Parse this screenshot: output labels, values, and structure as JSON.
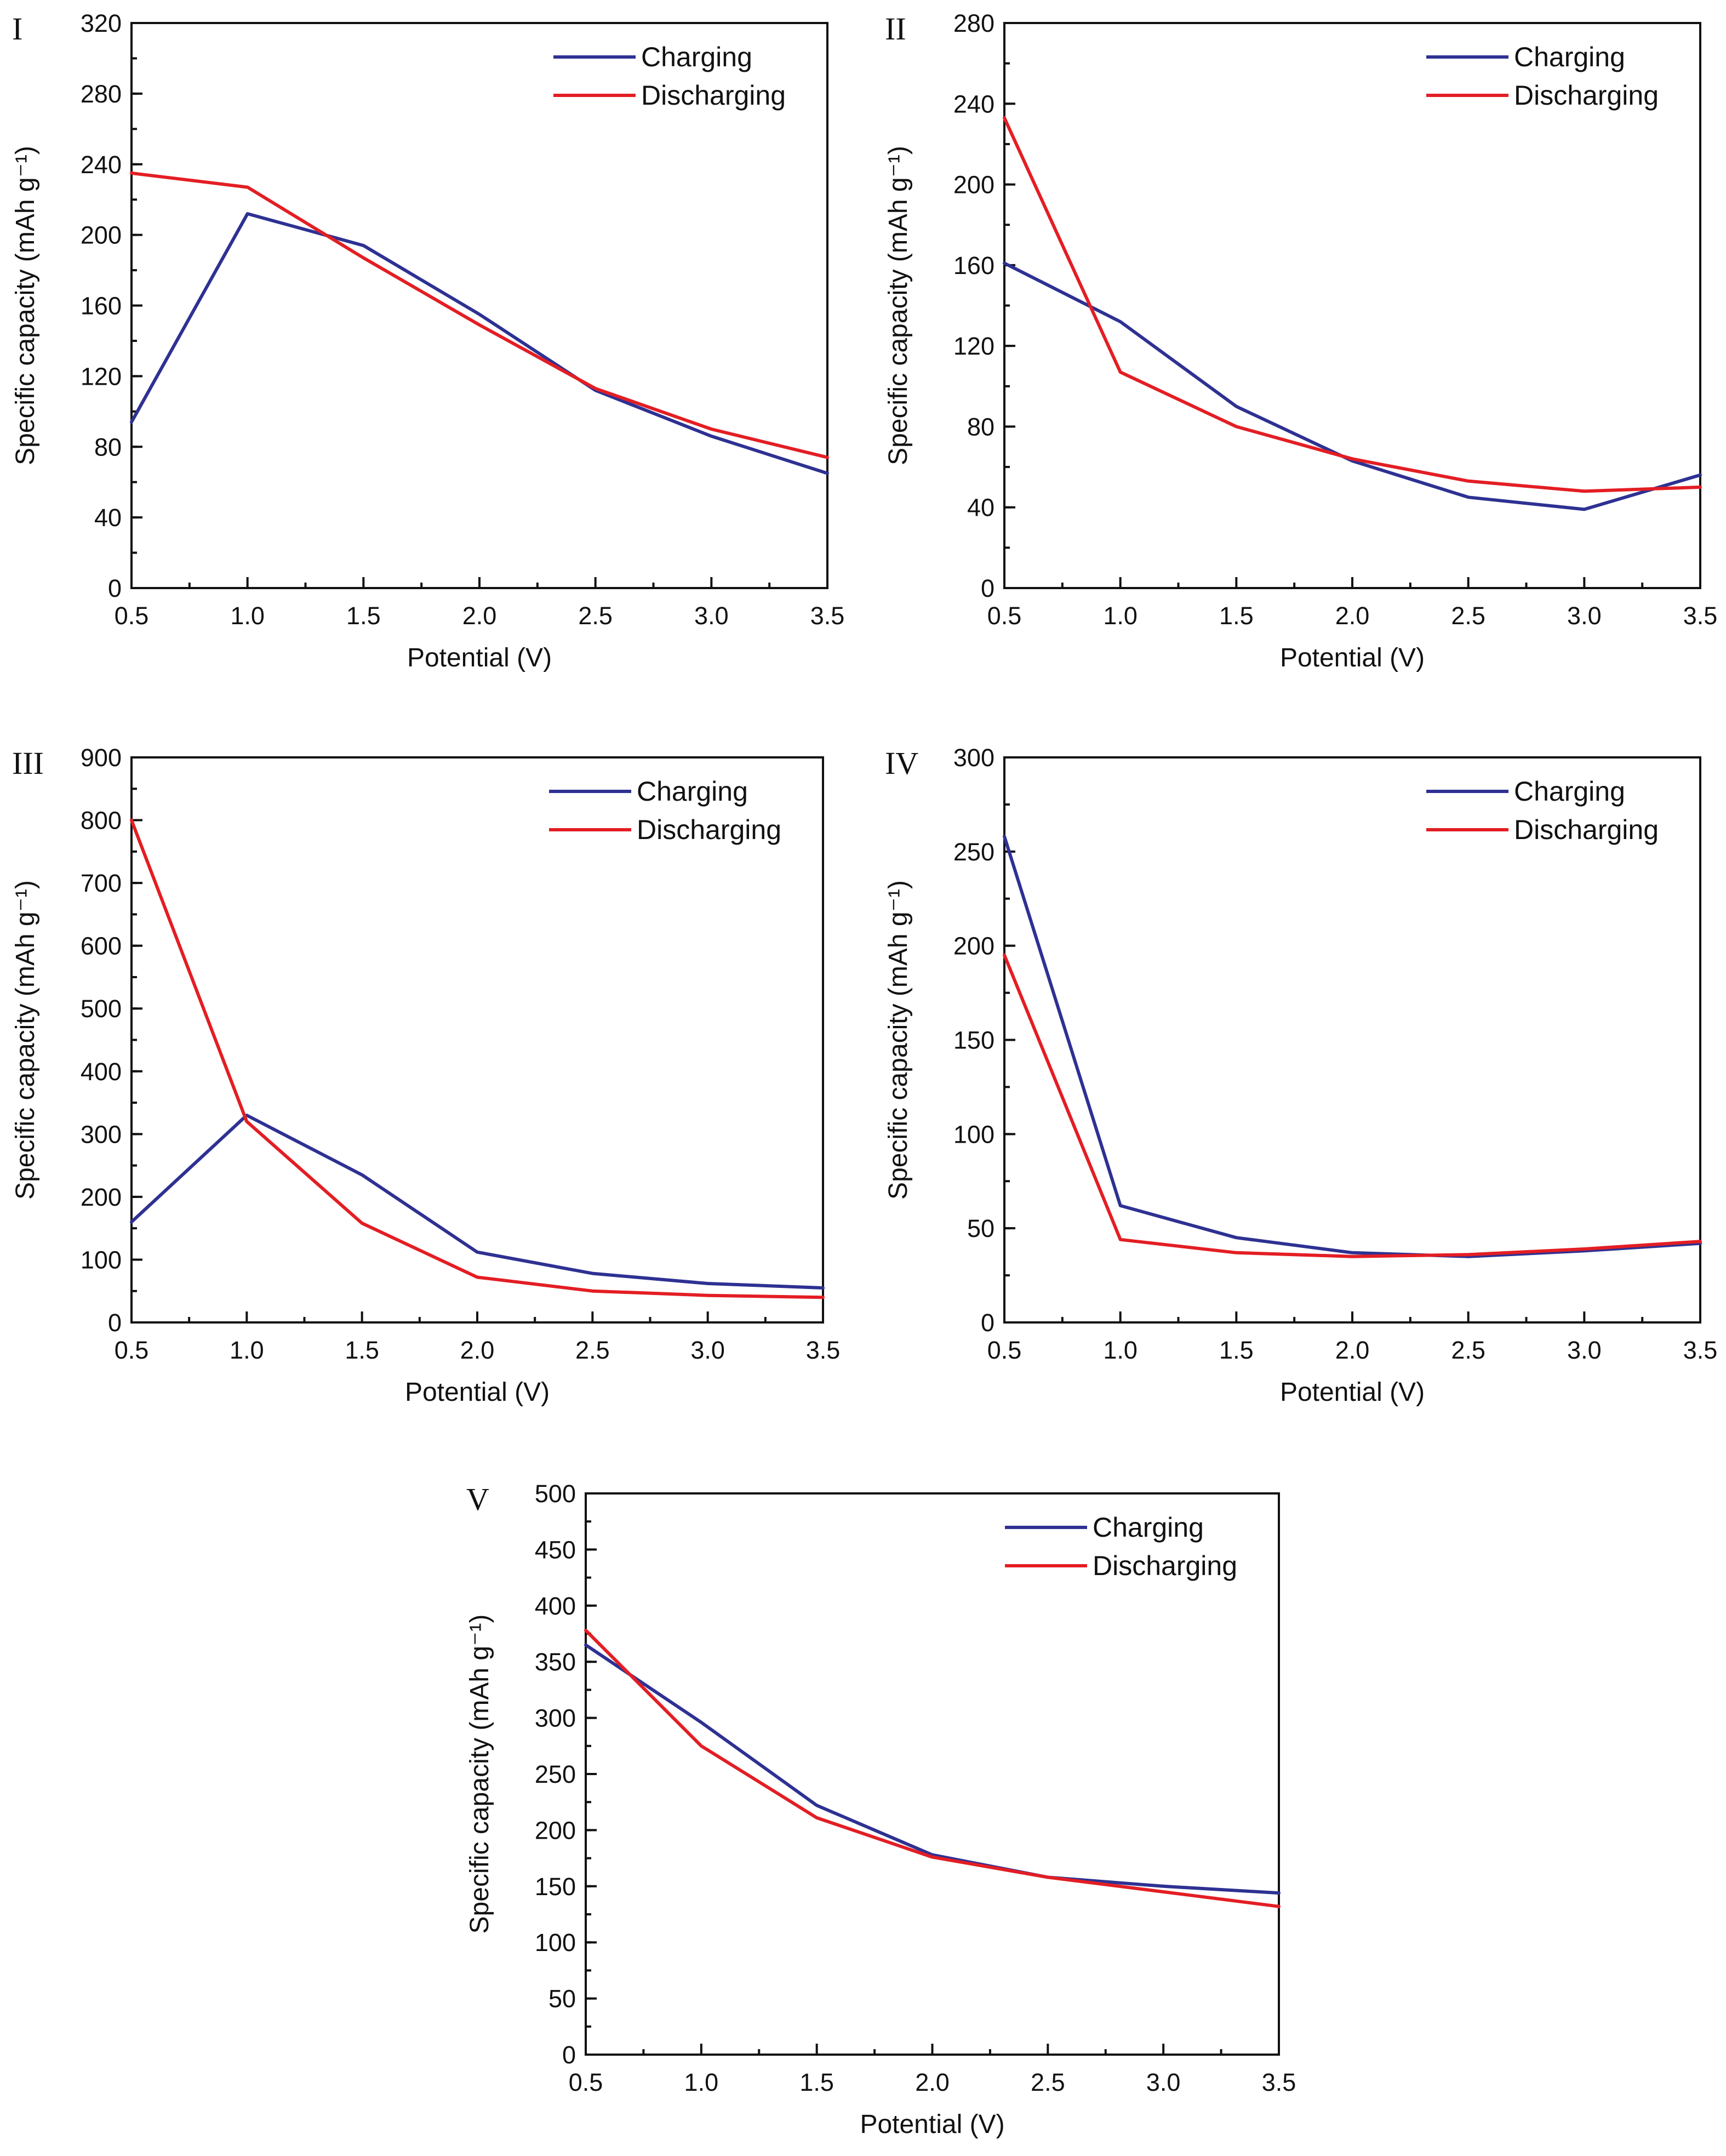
{
  "colors": {
    "charging": "#2e3192",
    "discharging": "#e31e24"
  },
  "chart_data": [
    {
      "panel": "I",
      "type": "line",
      "xlabel": "Potential (V)",
      "ylabel": "Specific capacity (mAh g⁻¹)",
      "xlim": [
        0.5,
        3.5
      ],
      "ylim": [
        0,
        320
      ],
      "xticks": [
        0.5,
        1.0,
        1.5,
        2.0,
        2.5,
        3.0,
        3.5
      ],
      "xtick_labels": [
        "0.5",
        "1.0",
        "1.5",
        "2.0",
        "2.5",
        "3.0",
        "3.5"
      ],
      "yticks": [
        0,
        40,
        80,
        120,
        160,
        200,
        240,
        280,
        320
      ],
      "ytick_labels": [
        "0",
        "40",
        "80",
        "120",
        "160",
        "200",
        "240",
        "280",
        "320"
      ],
      "ytick_minor_step": 20,
      "legend": "top-right",
      "x": [
        0.5,
        1.0,
        1.5,
        2.0,
        2.5,
        3.0,
        3.5
      ],
      "series": [
        {
          "name": "Charging",
          "values": [
            94,
            212,
            194,
            155,
            112,
            86,
            65
          ]
        },
        {
          "name": "Discharging",
          "values": [
            235,
            227,
            187,
            149,
            113,
            90,
            74
          ]
        }
      ]
    },
    {
      "panel": "II",
      "type": "line",
      "xlabel": "Potential (V)",
      "ylabel": "Specific capacity (mAh g⁻¹)",
      "xlim": [
        0.5,
        3.5
      ],
      "ylim": [
        0,
        280
      ],
      "xticks": [
        0.5,
        1.0,
        1.5,
        2.0,
        2.5,
        3.0,
        3.5
      ],
      "xtick_labels": [
        "0.5",
        "1.0",
        "1.5",
        "2.0",
        "2.5",
        "3.0",
        "3.5"
      ],
      "yticks": [
        0,
        40,
        80,
        120,
        160,
        200,
        240,
        280
      ],
      "ytick_labels": [
        "0",
        "40",
        "80",
        "120",
        "160",
        "200",
        "240",
        "280"
      ],
      "ytick_minor_step": 20,
      "legend": "top-right",
      "x": [
        0.5,
        1.0,
        1.5,
        2.0,
        2.5,
        3.0,
        3.5
      ],
      "series": [
        {
          "name": "Charging",
          "values": [
            161,
            132,
            90,
            63,
            45,
            39,
            56
          ]
        },
        {
          "name": "Discharging",
          "values": [
            233,
            107,
            80,
            64,
            53,
            48,
            50
          ]
        }
      ]
    },
    {
      "panel": "III",
      "type": "line",
      "xlabel": "Potential (V)",
      "ylabel": "Specific capacity (mAh g⁻¹)",
      "xlim": [
        0.5,
        3.5
      ],
      "ylim": [
        0,
        900
      ],
      "xticks": [
        0.5,
        1.0,
        1.5,
        2.0,
        2.5,
        3.0,
        3.5
      ],
      "xtick_labels": [
        "0.5",
        "1.0",
        "1.5",
        "2.0",
        "2.5",
        "3.0",
        "3.5"
      ],
      "yticks": [
        0,
        100,
        200,
        300,
        400,
        500,
        600,
        700,
        800,
        900
      ],
      "ytick_labels": [
        "0",
        "100",
        "200",
        "300",
        "400",
        "500",
        "600",
        "700",
        "800",
        "900"
      ],
      "ytick_minor_step": 50,
      "legend": "top-right",
      "x": [
        0.5,
        1.0,
        1.5,
        2.0,
        2.5,
        3.0,
        3.5
      ],
      "series": [
        {
          "name": "Charging",
          "values": [
            160,
            330,
            235,
            112,
            78,
            62,
            55
          ]
        },
        {
          "name": "Discharging",
          "values": [
            800,
            320,
            158,
            72,
            50,
            43,
            40
          ]
        }
      ]
    },
    {
      "panel": "IV",
      "type": "line",
      "xlabel": "Potential (V)",
      "ylabel": "Specific capacity (mAh g⁻¹)",
      "xlim": [
        0.5,
        3.5
      ],
      "ylim": [
        0,
        300
      ],
      "xticks": [
        0.5,
        1.0,
        1.5,
        2.0,
        2.5,
        3.0,
        3.5
      ],
      "xtick_labels": [
        "0.5",
        "1.0",
        "1.5",
        "2.0",
        "2.5",
        "3.0",
        "3.5"
      ],
      "yticks": [
        0,
        50,
        100,
        150,
        200,
        250,
        300
      ],
      "ytick_labels": [
        "0",
        "50",
        "100",
        "150",
        "200",
        "250",
        "300"
      ],
      "ytick_minor_step": 25,
      "legend": "top-right",
      "x": [
        0.5,
        1.0,
        1.5,
        2.0,
        2.5,
        3.0,
        3.5
      ],
      "series": [
        {
          "name": "Charging",
          "values": [
            258,
            62,
            45,
            37,
            35,
            38,
            42
          ]
        },
        {
          "name": "Discharging",
          "values": [
            195,
            44,
            37,
            35,
            36,
            39,
            43
          ]
        }
      ]
    },
    {
      "panel": "V",
      "type": "line",
      "xlabel": "Potential (V)",
      "ylabel": "Specific capacity (mAh g⁻¹)",
      "xlim": [
        0.5,
        3.5
      ],
      "ylim": [
        0,
        500
      ],
      "xticks": [
        0.5,
        1.0,
        1.5,
        2.0,
        2.5,
        3.0,
        3.5
      ],
      "xtick_labels": [
        "0.5",
        "1.0",
        "1.5",
        "2.0",
        "2.5",
        "3.0",
        "3.5"
      ],
      "yticks": [
        0,
        50,
        100,
        150,
        200,
        250,
        300,
        350,
        400,
        450,
        500
      ],
      "ytick_labels": [
        "0",
        "50",
        "100",
        "150",
        "200",
        "250",
        "300",
        "350",
        "400",
        "450",
        "500"
      ],
      "ytick_minor_step": 25,
      "legend": "top-right",
      "x": [
        0.5,
        1.0,
        1.5,
        2.0,
        2.5,
        3.0,
        3.5
      ],
      "series": [
        {
          "name": "Charging",
          "values": [
            365,
            296,
            222,
            178,
            158,
            150,
            144
          ]
        },
        {
          "name": "Discharging",
          "values": [
            378,
            275,
            211,
            176,
            158,
            145,
            132
          ]
        }
      ]
    }
  ]
}
